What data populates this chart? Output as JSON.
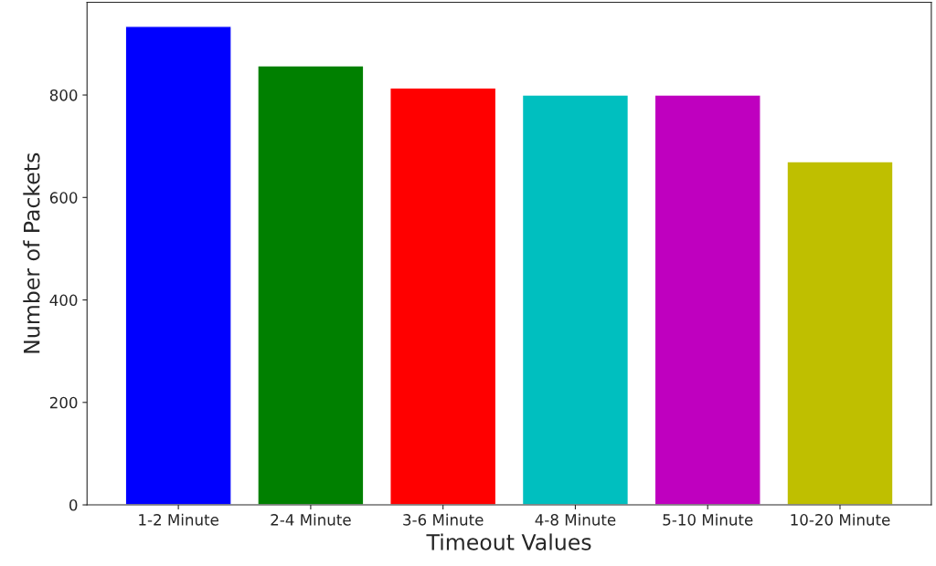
{
  "chart_data": {
    "type": "bar",
    "xlabel": "Timeout Values",
    "ylabel": "Number of Packets",
    "categories": [
      "1-2 Minute",
      "2-4 Minute",
      "3-6 Minute",
      "4-8 Minute",
      "5-10 Minute",
      "10-20 Minute"
    ],
    "values": [
      934,
      857,
      814,
      800,
      800,
      670
    ],
    "colors": [
      "#0000ff",
      "#008000",
      "#ff0000",
      "#00bfbf",
      "#bf00bf",
      "#bfbf00"
    ],
    "ylim": [
      0,
      981
    ],
    "yticks": [
      0,
      200,
      400,
      600,
      800
    ],
    "grid": false,
    "legend": false
  }
}
